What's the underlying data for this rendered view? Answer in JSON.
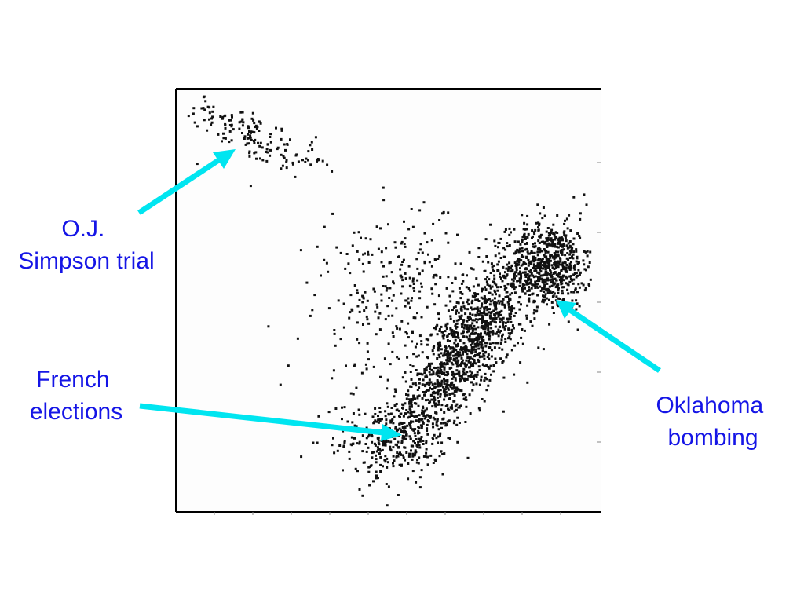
{
  "colors": {
    "background": "#ffffff",
    "plot_background": "#fdfdfd",
    "points": "#111111",
    "axis": "#000000",
    "arrow": "#00e5f0",
    "label_text": "#1515e6"
  },
  "annotations": [
    {
      "id": "oj",
      "lines": [
        "O.J.",
        "Simpson trial"
      ]
    },
    {
      "id": "french",
      "lines": [
        "French",
        "elections"
      ]
    },
    {
      "id": "oklahoma",
      "lines": [
        "Oklahoma",
        "bombing"
      ]
    }
  ],
  "chart_data": {
    "type": "scatter",
    "title": "",
    "xlabel": "",
    "ylabel": "",
    "xlim": [
      0,
      1
    ],
    "ylim": [
      0,
      1
    ],
    "grid": false,
    "tick_labels_shown": false,
    "clusters": [
      {
        "annotation": "O.J. Simpson trial",
        "center": [
          0.16,
          0.9
        ],
        "spread": [
          0.07,
          0.03
        ],
        "n": 140
      },
      {
        "annotation": null,
        "center": [
          0.31,
          0.84
        ],
        "spread": [
          0.02,
          0.02
        ],
        "n": 20
      },
      {
        "annotation": "French elections",
        "center": [
          0.52,
          0.17
        ],
        "spread": [
          0.06,
          0.04
        ],
        "n": 260
      },
      {
        "annotation": "Oklahoma bombing",
        "center": [
          0.88,
          0.58
        ],
        "spread": [
          0.05,
          0.05
        ],
        "n": 650
      },
      {
        "annotation": null,
        "center": [
          0.68,
          0.38
        ],
        "spread": [
          0.09,
          0.09
        ],
        "n": 1300
      },
      {
        "annotation": null,
        "center": [
          0.55,
          0.52
        ],
        "spread": [
          0.1,
          0.09
        ],
        "n": 260
      },
      {
        "annotation": null,
        "center": [
          0.4,
          0.4
        ],
        "spread": [
          0.06,
          0.15
        ],
        "n": 60
      }
    ]
  }
}
